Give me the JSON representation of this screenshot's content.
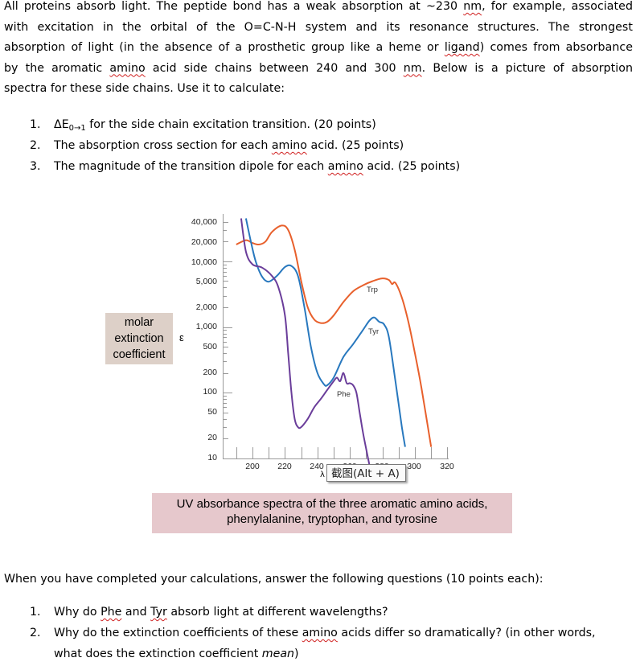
{
  "intro": {
    "lines": [
      [
        "All proteins absorb light. The peptide bond has a weak absorption at ~230 ",
        "nm",
        ", for example, associated"
      ],
      [
        "with excitation in the orbital of the O=C-N-H system and its resonance structures. The strongest"
      ],
      [
        "absorption of light (in the absence of a prosthetic group like a heme or ",
        "ligand",
        ") comes from absorbance"
      ],
      [
        "by the aromatic ",
        "amino",
        " acid side chains between 240 and 300 ",
        "nm",
        ". Below is a picture of absorption"
      ],
      [
        "spectra for these side chains. Use it to calculate:"
      ]
    ]
  },
  "calculations": {
    "items": [
      {
        "num": "1.",
        "prefix": "ΔE",
        "sub": "0→1",
        "text": " for the side chain excitation transition. (20 points)"
      },
      {
        "num": "2.",
        "pre": "The absorption cross section for each ",
        "squig": "amino",
        "post": " acid. (25 points)"
      },
      {
        "num": "3.",
        "pre": "The magnitude of the transition dipole for each ",
        "squig": "amino",
        "post": " acid. (25 points)"
      }
    ]
  },
  "figure": {
    "ylabel_box": [
      "molar",
      "extinction",
      "coefficient"
    ],
    "epsilon_symbol": "ε",
    "caption_line1": "UV absorbance spectra of the three aromatic amino acids,",
    "caption_line2": "phenylalanine, tryptophan, and tyrosine",
    "xaxis_symbol": "λ",
    "tooltip": "截图(Alt + A)",
    "colors": {
      "Trp": "#e8602c",
      "Tyr": "#2878be",
      "Phe": "#6a3d9a",
      "axis": "#9a9a9a",
      "ylabel_bg": "#ddd0c8",
      "caption_bg": "#e6c8cc"
    }
  },
  "chart_data": {
    "type": "line",
    "title": "UV absorbance spectra of the three aromatic amino acids, phenylalanine, tryptophan, and tyrosine",
    "xlabel": "λ (nm)",
    "ylabel": "molar extinction coefficient ε",
    "yscale": "log",
    "ylim": [
      10,
      40000
    ],
    "xlim": [
      182,
      322
    ],
    "yticks": [
      "40,000",
      "20,000",
      "10,000",
      "5,000",
      "2,000",
      "1,000",
      "500",
      "200",
      "100",
      "50",
      "20",
      "10"
    ],
    "ytick_values": [
      40000,
      20000,
      10000,
      5000,
      2000,
      1000,
      500,
      200,
      100,
      50,
      20,
      10
    ],
    "xticks": [
      "200",
      "220",
      "240",
      "260",
      "280",
      "300",
      "320"
    ],
    "xtick_values": [
      200,
      220,
      240,
      260,
      280,
      300,
      320
    ],
    "legend": "inline labels",
    "grid": false,
    "series": [
      {
        "name": "Trp",
        "x": [
          190,
          196,
          200,
          204,
          208,
          212,
          218,
          222,
          226,
          230,
          234,
          238,
          242,
          246,
          250,
          256,
          262,
          268,
          274,
          280,
          284,
          286,
          288,
          292,
          296,
          300,
          304,
          310
        ],
        "y": [
          18000,
          21000,
          19000,
          18000,
          20000,
          28000,
          35000,
          30000,
          15000,
          5000,
          2000,
          1300,
          1150,
          1200,
          1500,
          2400,
          3500,
          4300,
          5000,
          5500,
          5200,
          4500,
          4700,
          2800,
          1200,
          400,
          120,
          15
        ]
      },
      {
        "name": "Tyr",
        "x": [
          196,
          199,
          202,
          206,
          210,
          215,
          220,
          224,
          228,
          232,
          236,
          240,
          244,
          246,
          250,
          256,
          262,
          268,
          272,
          275,
          278,
          281,
          284,
          288,
          292,
          294
        ],
        "y": [
          45000,
          20000,
          10000,
          5800,
          4900,
          6000,
          8200,
          8500,
          6000,
          2000,
          500,
          200,
          135,
          130,
          170,
          350,
          550,
          900,
          1250,
          1400,
          1200,
          1100,
          700,
          150,
          30,
          15
        ]
      },
      {
        "name": "Phe",
        "x": [
          193,
          196,
          200,
          206,
          212,
          216,
          220,
          222,
          224,
          226,
          228,
          230,
          234,
          238,
          242,
          246,
          250,
          252,
          254,
          256,
          258,
          260,
          262,
          264,
          266,
          268,
          270,
          272
        ],
        "y": [
          45000,
          14000,
          9000,
          8000,
          6000,
          4000,
          1500,
          400,
          100,
          40,
          30,
          30,
          40,
          60,
          80,
          110,
          150,
          170,
          150,
          200,
          140,
          140,
          130,
          100,
          50,
          25,
          14,
          8
        ]
      }
    ]
  },
  "followup": {
    "intro": "When you have completed your calculations, answer the following questions (10 points each):",
    "items": [
      {
        "num": "1.",
        "p1": "Why do ",
        "s1": "Phe",
        "p2": " and ",
        "s2": "Tyr",
        "p3": " absorb light at different wavelengths?"
      },
      {
        "num": "2.",
        "p1": "Why do the extinction coefficients of these ",
        "s1": "amino",
        "p2": " acids differ so dramatically? (in other words,",
        "line2_pre": "what does the extinction coefficient ",
        "line2_em": "mean",
        "line2_post": ")"
      }
    ]
  }
}
